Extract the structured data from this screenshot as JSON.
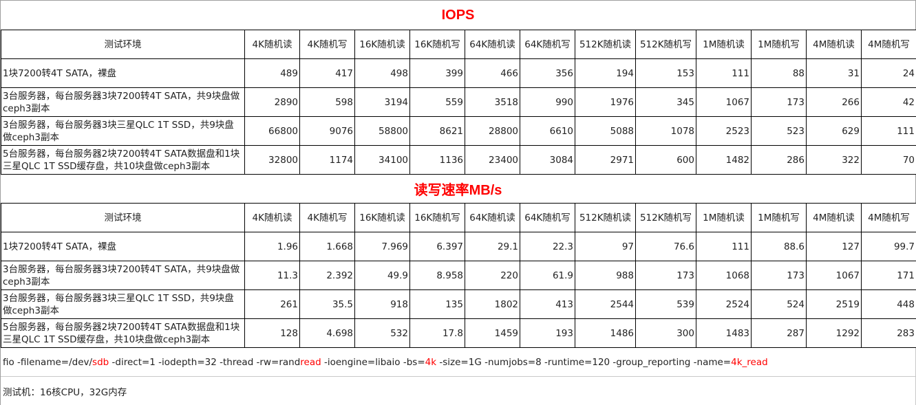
{
  "columns": [
    "4K随机读",
    "4K随机写",
    "16K随机读",
    "16K随机写",
    "64K随机读",
    "64K随机写",
    "512K随机读",
    "512K随机写",
    "1M随机读",
    "1M随机写",
    "4M随机读",
    "4M随机写"
  ],
  "env_header": "测试环境",
  "iops": {
    "title": "IOPS",
    "rows": [
      {
        "env": "1块7200转4T SATA，裸盘",
        "values": [
          "489",
          "417",
          "498",
          "399",
          "466",
          "356",
          "194",
          "153",
          "111",
          "88",
          "31",
          "24"
        ]
      },
      {
        "env": "3台服务器，每台服务器3块7200转4T SATA，共9块盘做ceph3副本",
        "values": [
          "2890",
          "598",
          "3194",
          "559",
          "3518",
          "990",
          "1976",
          "345",
          "1067",
          "173",
          "266",
          "42"
        ]
      },
      {
        "env": "3台服务器，每台服务器3块三星QLC 1T SSD，共9块盘做ceph3副本",
        "values": [
          "66800",
          "9076",
          "58800",
          "8621",
          "28800",
          "6610",
          "5088",
          "1078",
          "2523",
          "523",
          "629",
          "111"
        ]
      },
      {
        "env": "5台服务器，每台服务器2块7200转4T SATA数据盘和1块三星QLC 1T SSD缓存盘，共10块盘做ceph3副本",
        "values": [
          "32800",
          "1174",
          "34100",
          "1136",
          "23400",
          "3084",
          "2971",
          "600",
          "1482",
          "286",
          "322",
          "70"
        ]
      }
    ]
  },
  "throughput": {
    "title": "读写速率MB/s",
    "rows": [
      {
        "env": "1块7200转4T SATA，裸盘",
        "values": [
          "1.96",
          "1.668",
          "7.969",
          "6.397",
          "29.1",
          "22.3",
          "97",
          "76.6",
          "111",
          "88.6",
          "127",
          "99.7"
        ]
      },
      {
        "env": "3台服务器，每台服务器3块7200转4T SATA，共9块盘做ceph3副本",
        "values": [
          "11.3",
          "2.392",
          "49.9",
          "8.958",
          "220",
          "61.9",
          "988",
          "173",
          "1068",
          "173",
          "1067",
          "171"
        ]
      },
      {
        "env": "3台服务器，每台服务器3块三星QLC 1T SSD，共9块盘做ceph3副本",
        "values": [
          "261",
          "35.5",
          "918",
          "135",
          "1802",
          "413",
          "2544",
          "539",
          "2524",
          "524",
          "2519",
          "448"
        ]
      },
      {
        "env": "5台服务器，每台服务器2块7200转4T SATA数据盘和1块三星QLC 1T SSD缓存盘，共10块盘做ceph3副本",
        "values": [
          "128",
          "4.698",
          "532",
          "17.8",
          "1459",
          "193",
          "1486",
          "300",
          "1483",
          "287",
          "1292",
          "283"
        ]
      }
    ]
  },
  "fio_command": {
    "parts": [
      {
        "text": "fio -filename=/dev/",
        "highlight": false
      },
      {
        "text": "sdb",
        "highlight": true
      },
      {
        "text": " -direct=1 -iodepth=32 -thread -rw=rand",
        "highlight": false
      },
      {
        "text": "read",
        "highlight": true
      },
      {
        "text": " -ioengine=libaio -bs=",
        "highlight": false
      },
      {
        "text": "4k",
        "highlight": true
      },
      {
        "text": " -size=1G -numjobs=8 -runtime=120 -group_reporting -name=",
        "highlight": false
      },
      {
        "text": "4k_read",
        "highlight": true
      }
    ]
  },
  "test_machine": "测试机：16核CPU，32G内存",
  "colors": {
    "title": "#ff0000",
    "highlight": "#ff0000",
    "border": "#000000"
  }
}
